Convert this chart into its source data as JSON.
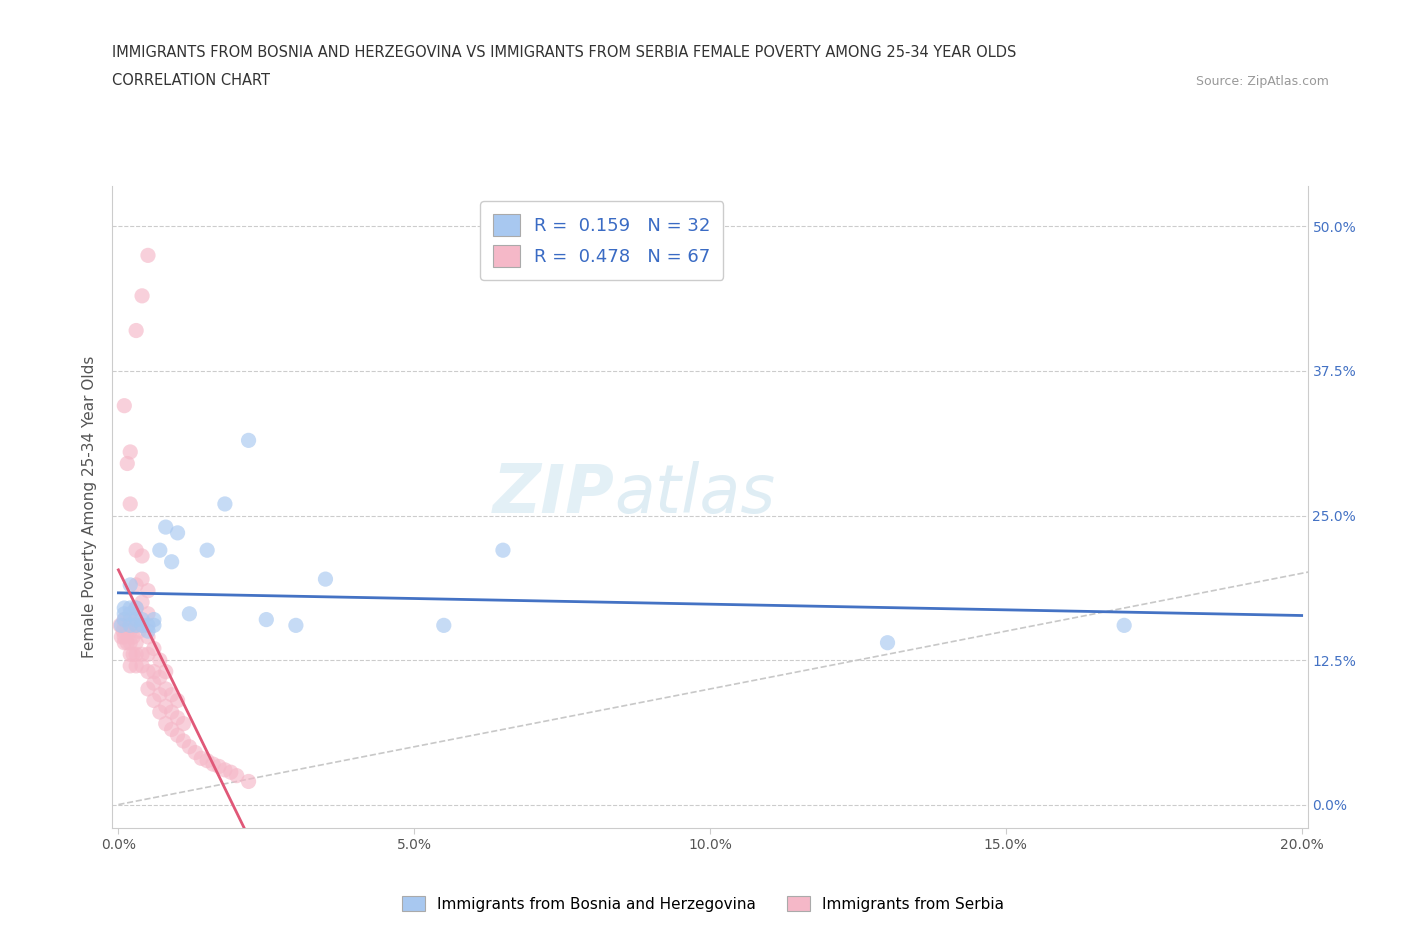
{
  "title_line1": "IMMIGRANTS FROM BOSNIA AND HERZEGOVINA VS IMMIGRANTS FROM SERBIA FEMALE POVERTY AMONG 25-34 YEAR OLDS",
  "title_line2": "CORRELATION CHART",
  "source_text": "Source: ZipAtlas.com",
  "ylabel": "Female Poverty Among 25-34 Year Olds",
  "xlim": [
    -0.001,
    0.201
  ],
  "ylim": [
    -0.02,
    0.535
  ],
  "xticks": [
    0.0,
    0.05,
    0.1,
    0.15,
    0.2
  ],
  "xticklabels": [
    "0.0%",
    "5.0%",
    "10.0%",
    "15.0%",
    "20.0%"
  ],
  "yticks": [
    0.0,
    0.125,
    0.25,
    0.375,
    0.5
  ],
  "yticklabels": [
    "0.0%",
    "12.5%",
    "25.0%",
    "37.5%",
    "50.0%"
  ],
  "watermark": "ZIPatlas",
  "legend_bosnia_R": "0.159",
  "legend_bosnia_N": "32",
  "legend_serbia_R": "0.478",
  "legend_serbia_N": "67",
  "legend_label_bosnia": "Immigrants from Bosnia and Herzegovina",
  "legend_label_serbia": "Immigrants from Serbia",
  "color_bosnia": "#a8c8f0",
  "color_serbia": "#f5b8c8",
  "color_bosnia_line": "#4472c4",
  "color_serbia_line": "#e05878",
  "color_diagonal": "#c8c8c8",
  "bosnia_x": [
    0.0005,
    0.001,
    0.001,
    0.001,
    0.002,
    0.002,
    0.002,
    0.002,
    0.003,
    0.003,
    0.003,
    0.004,
    0.004,
    0.005,
    0.005,
    0.006,
    0.006,
    0.007,
    0.008,
    0.009,
    0.01,
    0.012,
    0.015,
    0.018,
    0.022,
    0.025,
    0.03,
    0.035,
    0.055,
    0.065,
    0.13,
    0.17
  ],
  "bosnia_y": [
    0.155,
    0.17,
    0.165,
    0.16,
    0.155,
    0.19,
    0.165,
    0.17,
    0.155,
    0.16,
    0.17,
    0.155,
    0.16,
    0.15,
    0.155,
    0.155,
    0.16,
    0.22,
    0.24,
    0.21,
    0.235,
    0.165,
    0.22,
    0.26,
    0.315,
    0.16,
    0.155,
    0.195,
    0.155,
    0.22,
    0.14,
    0.155
  ],
  "serbia_x": [
    0.0003,
    0.0005,
    0.0008,
    0.001,
    0.001,
    0.001,
    0.001,
    0.0015,
    0.0015,
    0.002,
    0.002,
    0.002,
    0.002,
    0.002,
    0.0025,
    0.0025,
    0.003,
    0.003,
    0.003,
    0.003,
    0.003,
    0.003,
    0.003,
    0.003,
    0.0035,
    0.004,
    0.004,
    0.004,
    0.004,
    0.004,
    0.004,
    0.005,
    0.005,
    0.005,
    0.005,
    0.005,
    0.005,
    0.006,
    0.006,
    0.006,
    0.006,
    0.007,
    0.007,
    0.007,
    0.007,
    0.008,
    0.008,
    0.008,
    0.008,
    0.009,
    0.009,
    0.009,
    0.01,
    0.01,
    0.01,
    0.011,
    0.011,
    0.012,
    0.013,
    0.014,
    0.015,
    0.016,
    0.017,
    0.018,
    0.019,
    0.02,
    0.022
  ],
  "serbia_y": [
    0.155,
    0.145,
    0.15,
    0.14,
    0.145,
    0.155,
    0.16,
    0.14,
    0.15,
    0.12,
    0.13,
    0.14,
    0.15,
    0.16,
    0.13,
    0.145,
    0.12,
    0.13,
    0.14,
    0.155,
    0.16,
    0.17,
    0.19,
    0.22,
    0.15,
    0.12,
    0.13,
    0.155,
    0.175,
    0.195,
    0.215,
    0.1,
    0.115,
    0.13,
    0.145,
    0.165,
    0.185,
    0.09,
    0.105,
    0.115,
    0.135,
    0.08,
    0.095,
    0.11,
    0.125,
    0.07,
    0.085,
    0.1,
    0.115,
    0.065,
    0.08,
    0.095,
    0.06,
    0.075,
    0.09,
    0.055,
    0.07,
    0.05,
    0.045,
    0.04,
    0.038,
    0.035,
    0.033,
    0.03,
    0.028,
    0.025,
    0.02
  ],
  "serbia_outliers_x": [
    0.001,
    0.0015,
    0.002,
    0.002,
    0.003,
    0.004,
    0.005
  ],
  "serbia_outliers_y": [
    0.345,
    0.295,
    0.26,
    0.305,
    0.41,
    0.44,
    0.475
  ]
}
